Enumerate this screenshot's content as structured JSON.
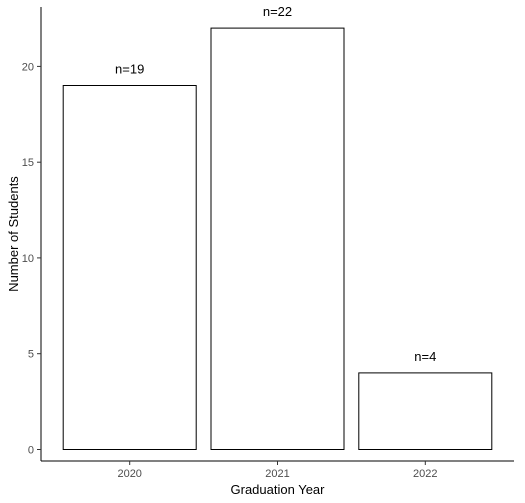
{
  "chart_data": {
    "type": "bar",
    "categories": [
      "2020",
      "2021",
      "2022"
    ],
    "values": [
      19,
      22,
      4
    ],
    "data_labels": [
      "n=19",
      "n=22",
      "n=4"
    ],
    "xlabel": "Graduation Year",
    "ylabel": "Number of Students",
    "ylim": [
      -0.6,
      23.1
    ],
    "yticks": [
      0,
      5,
      10,
      15,
      20
    ],
    "grid": false,
    "bar_fill": "#ffffff",
    "bar_stroke": "#000000"
  }
}
